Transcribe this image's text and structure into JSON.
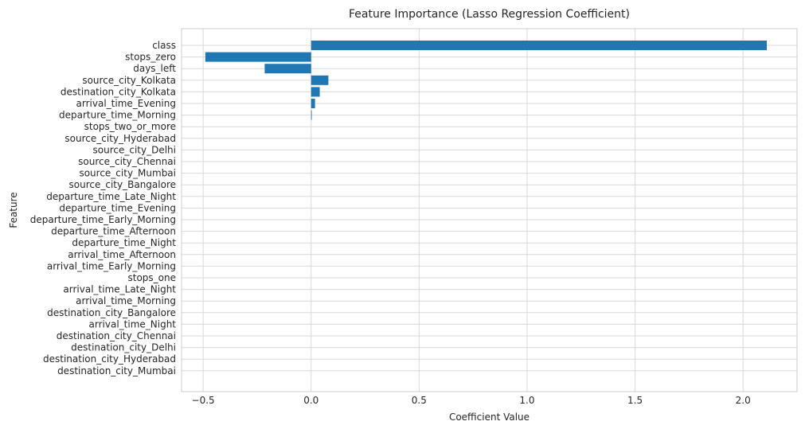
{
  "chart_data": {
    "type": "bar",
    "orientation": "horizontal",
    "title": "Feature Importance (Lasso Regression Coefficient)",
    "xlabel": "Coefficient Value",
    "ylabel": "Feature",
    "xlim": [
      -0.6,
      2.25
    ],
    "xticks": [
      -0.5,
      0.0,
      0.5,
      1.0,
      1.5,
      2.0
    ],
    "xtick_labels": [
      "−0.5",
      "0.0",
      "0.5",
      "1.0",
      "1.5",
      "2.0"
    ],
    "grid": true,
    "bar_color": "#1f77b4",
    "categories": [
      "class",
      "stops_zero",
      "days_left",
      "source_city_Kolkata",
      "destination_city_Kolkata",
      "arrival_time_Evening",
      "departure_time_Morning",
      "stops_two_or_more",
      "source_city_Hyderabad",
      "source_city_Delhi",
      "source_city_Chennai",
      "source_city_Mumbai",
      "source_city_Bangalore",
      "departure_time_Late_Night",
      "departure_time_Evening",
      "departure_time_Early_Morning",
      "departure_time_Afternoon",
      "departure_time_Night",
      "arrival_time_Afternoon",
      "arrival_time_Early_Morning",
      "stops_one",
      "arrival_time_Late_Night",
      "arrival_time_Morning",
      "destination_city_Bangalore",
      "arrival_time_Night",
      "destination_city_Chennai",
      "destination_city_Delhi",
      "destination_city_Hyderabad",
      "destination_city_Mumbai"
    ],
    "values": [
      2.11,
      -0.49,
      -0.215,
      0.08,
      0.04,
      0.018,
      0.003,
      0,
      0,
      0,
      0,
      0,
      0,
      0,
      0,
      0,
      0,
      0,
      0,
      0,
      0,
      0,
      0,
      0,
      0,
      0,
      0,
      0,
      0
    ]
  }
}
